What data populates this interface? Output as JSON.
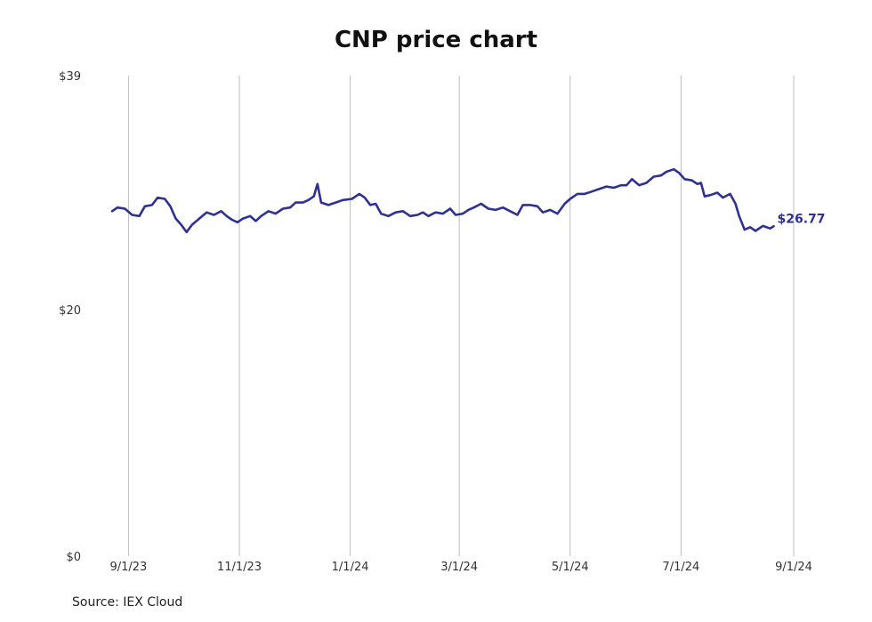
{
  "chart_data": {
    "type": "line",
    "title": "CNP price chart",
    "source": "Source: IEX Cloud",
    "xlabel": "",
    "ylabel": "",
    "ylim": [
      0,
      39
    ],
    "y_ticks": [
      "$0",
      "$20",
      "$39"
    ],
    "y_tick_values": [
      0,
      20,
      39
    ],
    "x_ticks": [
      "9/1/23",
      "11/1/23",
      "1/1/24",
      "3/1/24",
      "5/1/24",
      "7/1/24",
      "9/1/24"
    ],
    "x_tick_dates": [
      "2023-09-01",
      "2023-11-01",
      "2024-01-01",
      "2024-03-01",
      "2024-05-01",
      "2024-07-01",
      "2024-09-01"
    ],
    "xlim": [
      "2023-08-23",
      "2024-09-01"
    ],
    "grid": "vertical",
    "line_color": "#2e3192",
    "last_value_label": "$26.77",
    "series": [
      {
        "name": "",
        "points": [
          [
            "2023-08-23",
            28.0
          ],
          [
            "2023-08-26",
            28.3
          ],
          [
            "2023-08-30",
            28.2
          ],
          [
            "2023-09-03",
            27.7
          ],
          [
            "2023-09-07",
            27.6
          ],
          [
            "2023-09-10",
            28.4
          ],
          [
            "2023-09-14",
            28.5
          ],
          [
            "2023-09-17",
            29.1
          ],
          [
            "2023-09-21",
            29.0
          ],
          [
            "2023-09-24",
            28.4
          ],
          [
            "2023-09-27",
            27.4
          ],
          [
            "2023-09-30",
            26.9
          ],
          [
            "2023-10-03",
            26.3
          ],
          [
            "2023-10-06",
            26.9
          ],
          [
            "2023-10-10",
            27.4
          ],
          [
            "2023-10-14",
            27.9
          ],
          [
            "2023-10-18",
            27.7
          ],
          [
            "2023-10-22",
            28.0
          ],
          [
            "2023-10-25",
            27.6
          ],
          [
            "2023-10-28",
            27.3
          ],
          [
            "2023-10-31",
            27.1
          ],
          [
            "2023-11-03",
            27.4
          ],
          [
            "2023-11-07",
            27.6
          ],
          [
            "2023-11-10",
            27.2
          ],
          [
            "2023-11-13",
            27.6
          ],
          [
            "2023-11-17",
            28.0
          ],
          [
            "2023-11-21",
            27.8
          ],
          [
            "2023-11-25",
            28.2
          ],
          [
            "2023-11-29",
            28.3
          ],
          [
            "2023-12-02",
            28.7
          ],
          [
            "2023-12-06",
            28.7
          ],
          [
            "2023-12-09",
            28.9
          ],
          [
            "2023-12-12",
            29.2
          ],
          [
            "2023-12-14",
            30.2
          ],
          [
            "2023-12-16",
            28.7
          ],
          [
            "2023-12-20",
            28.5
          ],
          [
            "2023-12-24",
            28.7
          ],
          [
            "2023-12-28",
            28.9
          ],
          [
            "2024-01-02",
            29.0
          ],
          [
            "2024-01-06",
            29.4
          ],
          [
            "2024-01-09",
            29.1
          ],
          [
            "2024-01-12",
            28.5
          ],
          [
            "2024-01-15",
            28.6
          ],
          [
            "2024-01-18",
            27.8
          ],
          [
            "2024-01-22",
            27.6
          ],
          [
            "2024-01-26",
            27.9
          ],
          [
            "2024-01-30",
            28.0
          ],
          [
            "2024-02-03",
            27.6
          ],
          [
            "2024-02-07",
            27.7
          ],
          [
            "2024-02-10",
            27.9
          ],
          [
            "2024-02-13",
            27.6
          ],
          [
            "2024-02-17",
            27.9
          ],
          [
            "2024-02-21",
            27.8
          ],
          [
            "2024-02-25",
            28.2
          ],
          [
            "2024-02-28",
            27.7
          ],
          [
            "2024-03-03",
            27.8
          ],
          [
            "2024-03-06",
            28.1
          ],
          [
            "2024-03-09",
            28.3
          ],
          [
            "2024-03-13",
            28.6
          ],
          [
            "2024-03-17",
            28.2
          ],
          [
            "2024-03-21",
            28.1
          ],
          [
            "2024-03-25",
            28.3
          ],
          [
            "2024-03-29",
            28.0
          ],
          [
            "2024-04-02",
            27.7
          ],
          [
            "2024-04-05",
            28.5
          ],
          [
            "2024-04-09",
            28.5
          ],
          [
            "2024-04-13",
            28.4
          ],
          [
            "2024-04-16",
            27.9
          ],
          [
            "2024-04-20",
            28.1
          ],
          [
            "2024-04-24",
            27.8
          ],
          [
            "2024-04-28",
            28.6
          ],
          [
            "2024-05-01",
            29.0
          ],
          [
            "2024-05-05",
            29.4
          ],
          [
            "2024-05-09",
            29.4
          ],
          [
            "2024-05-13",
            29.6
          ],
          [
            "2024-05-17",
            29.8
          ],
          [
            "2024-05-21",
            30.0
          ],
          [
            "2024-05-25",
            29.9
          ],
          [
            "2024-05-29",
            30.1
          ],
          [
            "2024-06-01",
            30.1
          ],
          [
            "2024-06-04",
            30.6
          ],
          [
            "2024-06-08",
            30.1
          ],
          [
            "2024-06-12",
            30.3
          ],
          [
            "2024-06-16",
            30.8
          ],
          [
            "2024-06-20",
            30.9
          ],
          [
            "2024-06-23",
            31.2
          ],
          [
            "2024-06-27",
            31.4
          ],
          [
            "2024-06-30",
            31.1
          ],
          [
            "2024-07-03",
            30.6
          ],
          [
            "2024-07-07",
            30.5
          ],
          [
            "2024-07-10",
            30.2
          ],
          [
            "2024-07-12",
            30.3
          ],
          [
            "2024-07-14",
            29.2
          ],
          [
            "2024-07-17",
            29.3
          ],
          [
            "2024-07-21",
            29.5
          ],
          [
            "2024-07-24",
            29.1
          ],
          [
            "2024-07-28",
            29.4
          ],
          [
            "2024-07-31",
            28.6
          ],
          [
            "2024-08-02",
            27.6
          ],
          [
            "2024-08-05",
            26.5
          ],
          [
            "2024-08-08",
            26.7
          ],
          [
            "2024-08-11",
            26.4
          ],
          [
            "2024-08-15",
            26.8
          ],
          [
            "2024-08-19",
            26.6
          ],
          [
            "2024-08-21",
            26.77
          ]
        ]
      }
    ]
  }
}
